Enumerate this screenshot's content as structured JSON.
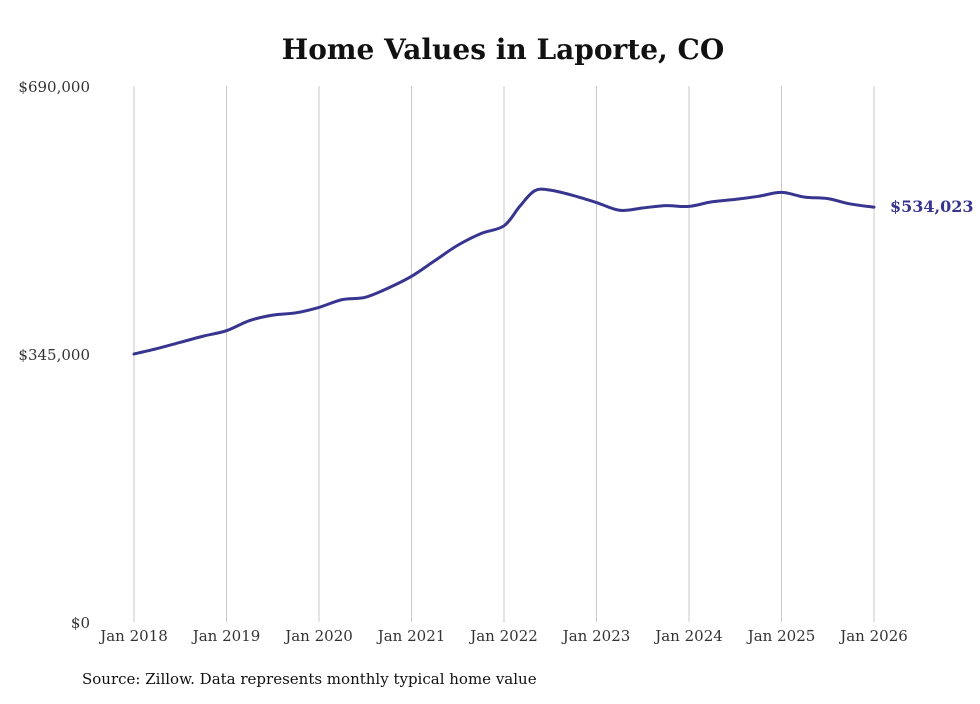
{
  "chart_data": {
    "type": "line",
    "title": "Home Values in Laporte, CO",
    "xlabel": "",
    "ylabel": "",
    "ylim": [
      0,
      690000
    ],
    "y_ticks": [
      {
        "value": 0,
        "label": "$0"
      },
      {
        "value": 345000,
        "label": "$345,000"
      },
      {
        "value": 690000,
        "label": "$690,000"
      }
    ],
    "x_ticks": [
      {
        "value": 2018,
        "label": "Jan 2018"
      },
      {
        "value": 2019,
        "label": "Jan 2019"
      },
      {
        "value": 2020,
        "label": "Jan 2020"
      },
      {
        "value": 2021,
        "label": "Jan 2021"
      },
      {
        "value": 2022,
        "label": "Jan 2022"
      },
      {
        "value": 2023,
        "label": "Jan 2023"
      },
      {
        "value": 2024,
        "label": "Jan 2024"
      },
      {
        "value": 2025,
        "label": "Jan 2025"
      },
      {
        "value": 2026,
        "label": "Jan 2026"
      }
    ],
    "xlim": [
      2018,
      2026
    ],
    "series": [
      {
        "name": "Typical home value",
        "color": "#37358f",
        "x": [
          2018.0,
          2018.25,
          2018.5,
          2018.75,
          2019.0,
          2019.25,
          2019.5,
          2019.75,
          2020.0,
          2020.25,
          2020.5,
          2020.75,
          2021.0,
          2021.25,
          2021.5,
          2021.75,
          2022.0,
          2022.17,
          2022.33,
          2022.5,
          2022.75,
          2023.0,
          2023.25,
          2023.5,
          2023.75,
          2024.0,
          2024.25,
          2024.5,
          2024.75,
          2025.0,
          2025.25,
          2025.5,
          2025.75,
          2026.0
        ],
        "values": [
          345000,
          352000,
          360000,
          368000,
          375000,
          388000,
          395000,
          398000,
          405000,
          415000,
          418000,
          430000,
          445000,
          465000,
          485000,
          500000,
          510000,
          535000,
          555000,
          556000,
          549000,
          540000,
          530000,
          533000,
          536000,
          535000,
          541000,
          544000,
          548000,
          553000,
          547000,
          545000,
          538000,
          534023
        ],
        "end_label": "$534,023"
      }
    ],
    "grid": {
      "vertical": true,
      "horizontal": false
    },
    "source_note": "Source: Zillow. Data represents monthly typical home value"
  }
}
